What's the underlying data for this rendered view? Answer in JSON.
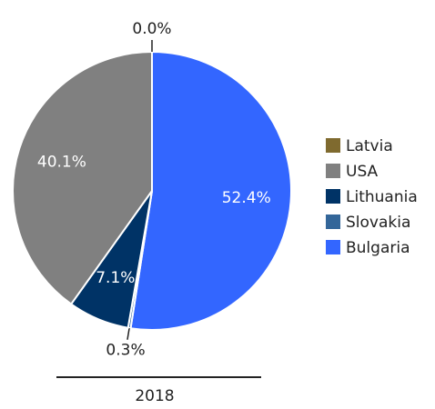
{
  "chart_data": {
    "type": "pie",
    "label": "2018",
    "categories": [
      "Latvia",
      "USA",
      "Lithuania",
      "Slovakia",
      "Bulgaria"
    ],
    "values": [
      0.0,
      40.1,
      7.1,
      0.3,
      52.4
    ],
    "value_labels": [
      "0.0%",
      "40.1%",
      "7.1%",
      "0.3%",
      "52.4%"
    ],
    "colors": [
      "#7f6a2f",
      "#808080",
      "#003366",
      "#336699",
      "#3366ff"
    ],
    "legend": "right"
  }
}
